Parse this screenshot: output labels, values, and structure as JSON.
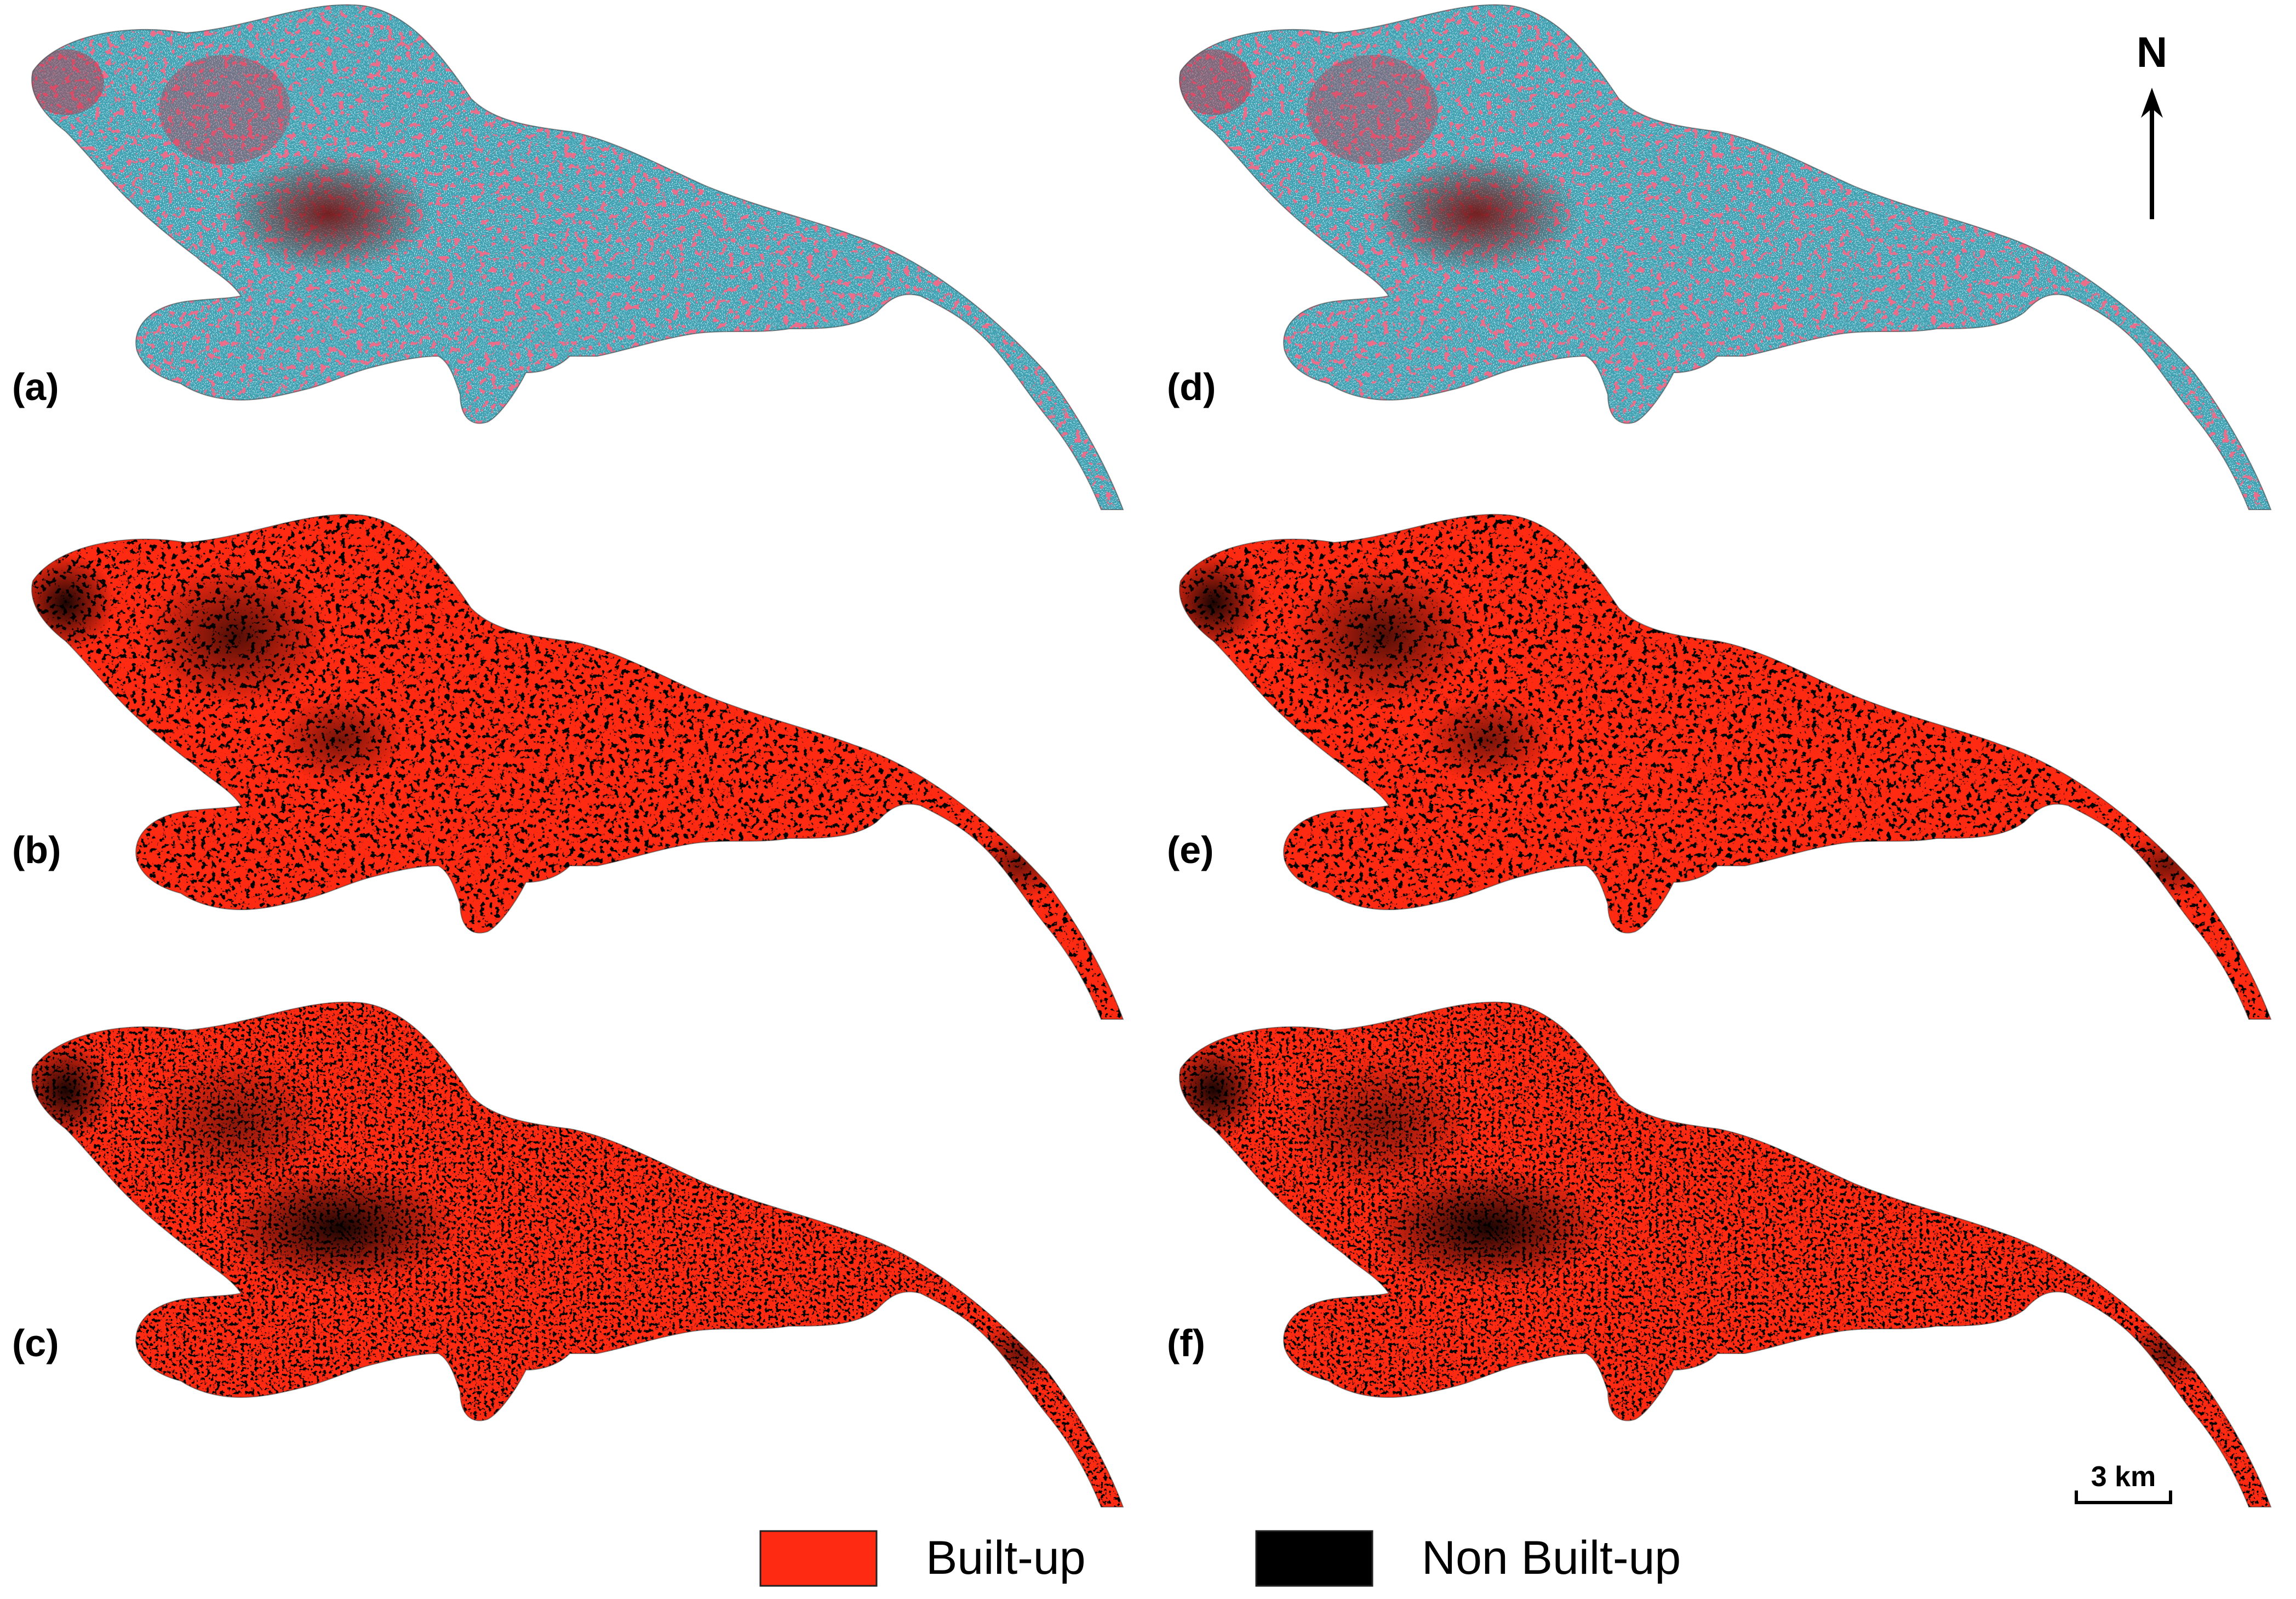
{
  "panels": [
    {
      "id": "a",
      "label": "(a)",
      "kind": "false-color"
    },
    {
      "id": "b",
      "label": "(b)",
      "kind": "classified"
    },
    {
      "id": "c",
      "label": "(c)",
      "kind": "classified"
    },
    {
      "id": "d",
      "label": "(d)",
      "kind": "false-color"
    },
    {
      "id": "e",
      "label": "(e)",
      "kind": "classified"
    },
    {
      "id": "f",
      "label": "(f)",
      "kind": "classified"
    }
  ],
  "north_arrow": {
    "label": "N"
  },
  "scale_bar": {
    "label": "3 km"
  },
  "legend": {
    "items": [
      {
        "label": "Built-up",
        "color": "#ff2a12"
      },
      {
        "label": "Non Built-up",
        "color": "#000000"
      }
    ]
  },
  "colors": {
    "built_up": "#ff2a12",
    "non_built_up": "#000000",
    "false_color_base": "#3e9fb0",
    "false_color_urban": "#c8243c"
  }
}
